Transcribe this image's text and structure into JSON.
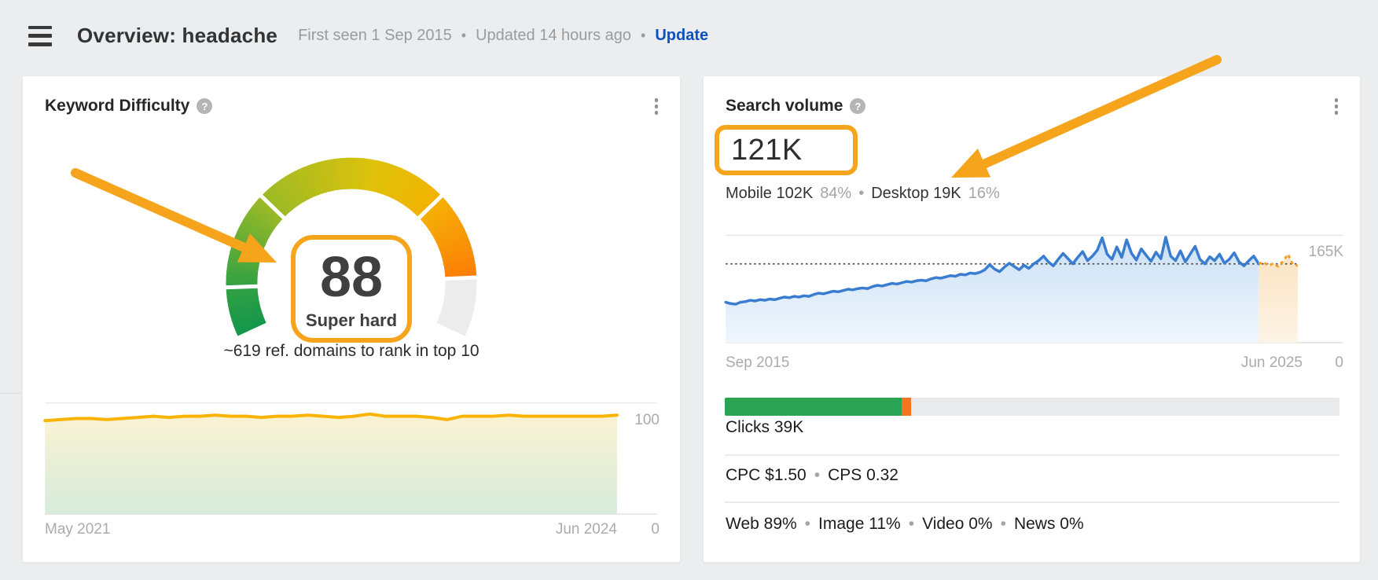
{
  "header": {
    "title": "Overview: headache",
    "first_seen": "First seen 1 Sep 2015",
    "dot": "•",
    "updated": "Updated 14 hours ago",
    "update_link": "Update"
  },
  "annotation": {
    "color": "#F6A41C"
  },
  "kd_card": {
    "title": "Keyword Difficulty",
    "help_icon": "?",
    "gauge": {
      "value": 88,
      "max": 100,
      "display": "88",
      "label": "Super hard",
      "boundaries": [
        10,
        30,
        70
      ],
      "color_stops": [
        [
          0,
          "#13964B"
        ],
        [
          10,
          "#31A143"
        ],
        [
          30,
          "#9CBA25"
        ],
        [
          55,
          "#DFC20B"
        ],
        [
          70,
          "#F2B200"
        ],
        [
          73,
          "#F7A806"
        ],
        [
          88,
          "#FB7E06"
        ]
      ],
      "rest_color": "#ECECEC"
    },
    "note": "~619 ref. domains to rank in top 10",
    "chart_data": {
      "type": "area",
      "title": "Keyword Difficulty history",
      "x_start_label": "May 2021",
      "x_end_label": "Jun 2024",
      "y_max": 100,
      "y_max_label": "100",
      "y_min_label": "0",
      "line_color": "#F9B403",
      "fill_top": "#FAF3D2",
      "fill_bottom": "#D7EBDC",
      "values": [
        84,
        85,
        86,
        86,
        85,
        86,
        87,
        88,
        87,
        88,
        88,
        89,
        88,
        88,
        87,
        88,
        88,
        89,
        88,
        87,
        88,
        90,
        88,
        88,
        88,
        87,
        85,
        88,
        88,
        88,
        89,
        88,
        88,
        88,
        88,
        88,
        88,
        89
      ]
    }
  },
  "sv_card": {
    "title": "Search volume",
    "help_icon": "?",
    "volume": "121K",
    "breakdown": {
      "mobile": "Mobile 102K",
      "mobile_pct": "84%",
      "dot": "•",
      "desktop": "Desktop 19K",
      "desktop_pct": "16%"
    },
    "chart_data": {
      "type": "line",
      "title": "Search volume history",
      "x_start_label": "Sep 2015",
      "x_end_label": "Jun 2025",
      "y_max": 165,
      "y_max_label": "165K",
      "y_min_label": "0",
      "unit": "K",
      "reference_value": 121,
      "forecast_points": 8,
      "line_color": "#3A7CD0",
      "fill_top": "#CBE0F5",
      "fill_bottom": "#F0F6FC",
      "forecast_line_color": "#F59B22",
      "forecast_fill_top": "#FAE3C2",
      "forecast_fill_bottom": "#FDF4E6",
      "reference_line_color": "#4D4D4D",
      "values": [
        62,
        60,
        59,
        62,
        63,
        65,
        64,
        66,
        65,
        67,
        66,
        68,
        70,
        69,
        71,
        70,
        72,
        71,
        74,
        76,
        75,
        77,
        79,
        78,
        80,
        82,
        81,
        83,
        84,
        83,
        86,
        88,
        87,
        89,
        91,
        90,
        92,
        94,
        93,
        95,
        96,
        95,
        98,
        100,
        99,
        101,
        103,
        102,
        105,
        104,
        107,
        106,
        108,
        112,
        120,
        113,
        109,
        116,
        122,
        117,
        112,
        119,
        114,
        121,
        126,
        133,
        124,
        118,
        128,
        137,
        129,
        121,
        131,
        140,
        126,
        133,
        142,
        161,
        136,
        128,
        147,
        131,
        158,
        137,
        127,
        144,
        134,
        125,
        139,
        129,
        162,
        133,
        126,
        141,
        124,
        136,
        148,
        128,
        121,
        132,
        126,
        136,
        122,
        128,
        138,
        124,
        118,
        126,
        133,
        121,
        124,
        118,
        122,
        117,
        125,
        136,
        120,
        118
      ]
    },
    "clicks": {
      "label": "Clicks 39K",
      "bar": {
        "green_pct": 28.8,
        "orange_pct": 1.5,
        "green_color": "#2AA353",
        "orange_color": "#F4741F",
        "track_color": "#E9EAEC"
      }
    },
    "metrics": {
      "cpc": "CPC $1.50",
      "dot": "•",
      "cps": "CPS 0.32"
    },
    "serp": {
      "web": "Web 89%",
      "dot": "•",
      "image": "Image 11%",
      "video": "Video 0%",
      "news": "News 0%"
    }
  }
}
